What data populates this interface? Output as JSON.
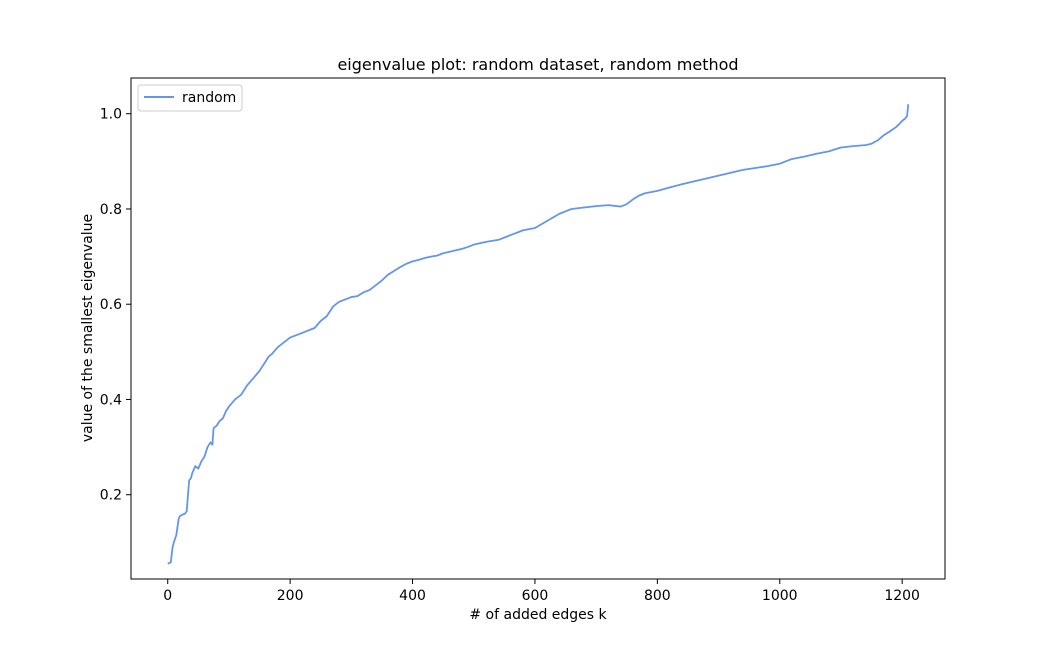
{
  "chart_data": {
    "type": "line",
    "title": "eigenvalue plot: random dataset, random method",
    "xlabel": "# of added edges k",
    "ylabel": "value of the smallest eigenvalue",
    "xlim": [
      -60,
      1270
    ],
    "ylim": [
      0.023,
      1.075
    ],
    "xticks": [
      0,
      200,
      400,
      600,
      800,
      1000,
      1200
    ],
    "xtick_labels": [
      "0",
      "200",
      "400",
      "600",
      "800",
      "1000",
      "1200"
    ],
    "yticks": [
      0.2,
      0.4,
      0.6,
      0.8,
      1.0
    ],
    "ytick_labels": [
      "0.2",
      "0.4",
      "0.6",
      "0.8",
      "1.0"
    ],
    "grid": false,
    "legend_position": "top-left",
    "series": [
      {
        "name": "random",
        "color": "#6495ed",
        "x": [
          0,
          5,
          8,
          10,
          14,
          18,
          20,
          24,
          28,
          31,
          35,
          38,
          40,
          45,
          50,
          55,
          60,
          65,
          70,
          73,
          75,
          80,
          85,
          90,
          95,
          100,
          110,
          120,
          130,
          140,
          150,
          160,
          165,
          170,
          180,
          190,
          200,
          210,
          220,
          230,
          240,
          250,
          260,
          270,
          280,
          290,
          300,
          310,
          320,
          330,
          340,
          350,
          360,
          370,
          380,
          390,
          400,
          410,
          420,
          430,
          440,
          450,
          460,
          470,
          480,
          490,
          500,
          510,
          520,
          530,
          540,
          560,
          580,
          600,
          620,
          640,
          660,
          680,
          700,
          720,
          740,
          750,
          760,
          770,
          780,
          800,
          820,
          840,
          860,
          880,
          900,
          920,
          940,
          960,
          980,
          1000,
          1020,
          1040,
          1060,
          1080,
          1100,
          1120,
          1140,
          1150,
          1160,
          1170,
          1180,
          1190,
          1195,
          1200,
          1205,
          1208,
          1210
        ],
        "y": [
          0.055,
          0.058,
          0.09,
          0.1,
          0.115,
          0.15,
          0.155,
          0.158,
          0.16,
          0.165,
          0.23,
          0.235,
          0.245,
          0.26,
          0.255,
          0.27,
          0.28,
          0.3,
          0.31,
          0.305,
          0.34,
          0.345,
          0.355,
          0.36,
          0.375,
          0.385,
          0.4,
          0.41,
          0.43,
          0.445,
          0.46,
          0.48,
          0.49,
          0.495,
          0.51,
          0.52,
          0.53,
          0.535,
          0.54,
          0.545,
          0.55,
          0.565,
          0.575,
          0.595,
          0.605,
          0.61,
          0.615,
          0.617,
          0.625,
          0.63,
          0.64,
          0.65,
          0.662,
          0.67,
          0.678,
          0.685,
          0.69,
          0.693,
          0.697,
          0.7,
          0.702,
          0.707,
          0.71,
          0.713,
          0.716,
          0.72,
          0.725,
          0.728,
          0.731,
          0.733,
          0.735,
          0.745,
          0.755,
          0.76,
          0.775,
          0.79,
          0.8,
          0.803,
          0.806,
          0.808,
          0.805,
          0.81,
          0.82,
          0.828,
          0.833,
          0.838,
          0.845,
          0.852,
          0.858,
          0.864,
          0.87,
          0.876,
          0.882,
          0.886,
          0.89,
          0.895,
          0.905,
          0.91,
          0.916,
          0.921,
          0.929,
          0.932,
          0.934,
          0.937,
          0.944,
          0.955,
          0.963,
          0.972,
          0.978,
          0.985,
          0.99,
          0.995,
          1.02
        ]
      }
    ]
  }
}
